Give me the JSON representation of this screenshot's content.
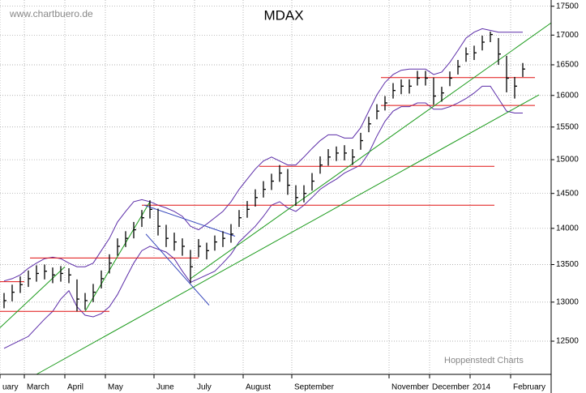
{
  "chart_data": {
    "type": "ohlc",
    "title": "MDAX",
    "source": "www.chartbuero.de",
    "credit": "Hoppenstedt Charts",
    "log_scale": true,
    "grid": true,
    "bar_color": "#000000",
    "categories": [
      "uary",
      null,
      null,
      "March",
      null,
      null,
      null,
      null,
      "April",
      null,
      null,
      null,
      null,
      "May",
      null,
      null,
      null,
      null,
      null,
      "June",
      null,
      null,
      null,
      null,
      "July",
      null,
      null,
      null,
      null,
      null,
      "August",
      null,
      null,
      null,
      null,
      null,
      "September",
      null,
      null,
      null,
      null,
      null,
      null,
      null,
      null,
      null,
      null,
      null,
      "November",
      null,
      null,
      null,
      null,
      "December",
      null,
      null,
      null,
      null,
      "2014",
      null,
      null,
      null,
      null,
      "February",
      null
    ],
    "high": [
      13120,
      13230,
      13340,
      13420,
      13490,
      13500,
      13460,
      13480,
      13450,
      13300,
      13120,
      13240,
      13420,
      13640,
      13860,
      13960,
      14090,
      14260,
      14400,
      14280,
      14050,
      13940,
      13860,
      13700,
      13850,
      13800,
      13900,
      13960,
      14060,
      14260,
      14390,
      14560,
      14680,
      14790,
      14920,
      14860,
      14620,
      14620,
      14800,
      15050,
      15160,
      15200,
      15220,
      15160,
      15410,
      15660,
      15860,
      15990,
      16200,
      16260,
      16260,
      16400,
      16400,
      16290,
      16140,
      16390,
      16580,
      16790,
      16820,
      16990,
      17060,
      16950,
      16650,
      16300,
      16530
    ],
    "low": [
      12920,
      13010,
      13120,
      13200,
      13270,
      13300,
      13250,
      13270,
      13250,
      12880,
      12900,
      13000,
      13180,
      13380,
      13620,
      13740,
      13860,
      14020,
      14140,
      13900,
      13740,
      13690,
      13620,
      13250,
      13600,
      13570,
      13690,
      13740,
      13800,
      14020,
      14150,
      14310,
      14440,
      14550,
      14670,
      14480,
      14320,
      14370,
      14540,
      14790,
      14910,
      14980,
      14990,
      14920,
      15150,
      15420,
      15620,
      15760,
      15950,
      16020,
      16030,
      16160,
      16160,
      15850,
      15900,
      16150,
      16340,
      16550,
      16580,
      16740,
      16880,
      16500,
      16050,
      15950,
      16300
    ],
    "close": [
      13020,
      13130,
      13230,
      13310,
      13380,
      13410,
      13360,
      13380,
      13360,
      13040,
      13020,
      13130,
      13310,
      13520,
      13750,
      13860,
      13980,
      14150,
      14270,
      14030,
      13860,
      13810,
      13750,
      13470,
      13750,
      13690,
      13810,
      13860,
      13920,
      14150,
      14270,
      14440,
      14560,
      14680,
      14800,
      14620,
      14440,
      14500,
      14680,
      14920,
      15040,
      15100,
      15100,
      15040,
      15290,
      15550,
      15750,
      15880,
      16080,
      16150,
      16150,
      16280,
      16280,
      15990,
      16040,
      16280,
      16470,
      16680,
      16700,
      16880,
      17010,
      16680,
      16280,
      16150,
      16430
    ],
    "bands": {
      "color": "#5b2ca8",
      "upper": [
        13280,
        13310,
        13360,
        13450,
        13520,
        13580,
        13600,
        13580,
        13520,
        13470,
        13470,
        13520,
        13690,
        13860,
        14090,
        14240,
        14380,
        14410,
        14380,
        14330,
        14290,
        14240,
        14170,
        14030,
        13980,
        14060,
        14150,
        14240,
        14380,
        14560,
        14710,
        14860,
        14980,
        15040,
        14980,
        14920,
        14920,
        15040,
        15170,
        15290,
        15380,
        15380,
        15330,
        15330,
        15490,
        15750,
        16010,
        16210,
        16340,
        16410,
        16430,
        16430,
        16430,
        16340,
        16380,
        16540,
        16740,
        16950,
        17050,
        17110,
        17080,
        17050,
        17050,
        17050,
        17050
      ],
      "lower": [
        12410,
        12460,
        12510,
        12560,
        12670,
        12780,
        12880,
        13040,
        13150,
        12940,
        12830,
        12810,
        12850,
        12940,
        13100,
        13310,
        13520,
        13690,
        13750,
        13710,
        13670,
        13580,
        13410,
        13260,
        13310,
        13360,
        13410,
        13520,
        13640,
        13810,
        13920,
        14030,
        14170,
        14330,
        14380,
        14290,
        14240,
        14330,
        14440,
        14560,
        14640,
        14710,
        14800,
        14860,
        14920,
        15100,
        15360,
        15590,
        15750,
        15820,
        15820,
        15880,
        15880,
        15780,
        15780,
        15820,
        15880,
        15950,
        16040,
        16150,
        16150,
        15950,
        15750,
        15720,
        15720
      ]
    },
    "level_color": "#e01010",
    "levels": [
      {
        "value": 12880,
        "x": [
          -0.5,
          13
        ]
      },
      {
        "value": 13270,
        "x": [
          -0.5,
          2.5
        ]
      },
      {
        "value": 13590,
        "x": [
          3.2,
          24
        ]
      },
      {
        "value": 14330,
        "x": [
          17,
          60.5
        ]
      },
      {
        "value": 14900,
        "x": [
          31.5,
          60.5
        ]
      },
      {
        "value": 16290,
        "x": [
          46.5,
          65.5
        ]
      },
      {
        "value": 15840,
        "x": [
          46.5,
          65.5
        ]
      }
    ],
    "trendlines": [
      {
        "color": "#1a9a1a",
        "points": [
          [
            4,
            12090
          ],
          [
            66,
            16010
          ]
        ]
      },
      {
        "color": "#1a9a1a",
        "points": [
          [
            23,
            13310
          ],
          [
            67.5,
            17210
          ]
        ]
      },
      {
        "color": "#1a9a1a",
        "points": [
          [
            -0.5,
            12670
          ],
          [
            7.5,
            13470
          ]
        ]
      },
      {
        "color": "#1a9a1a",
        "points": [
          [
            10,
            12880
          ],
          [
            18,
            14380
          ]
        ]
      },
      {
        "color": "#3344bb",
        "points": [
          [
            17.5,
            13920
          ],
          [
            25.3,
            12960
          ]
        ]
      },
      {
        "color": "#3344bb",
        "points": [
          [
            17.3,
            14330
          ],
          [
            28.5,
            13890
          ]
        ]
      }
    ],
    "ylim": [
      12090,
      17610
    ],
    "yticks": [
      12500,
      13000,
      13500,
      14000,
      14500,
      15000,
      15500,
      16000,
      16500,
      17000,
      17500
    ]
  }
}
